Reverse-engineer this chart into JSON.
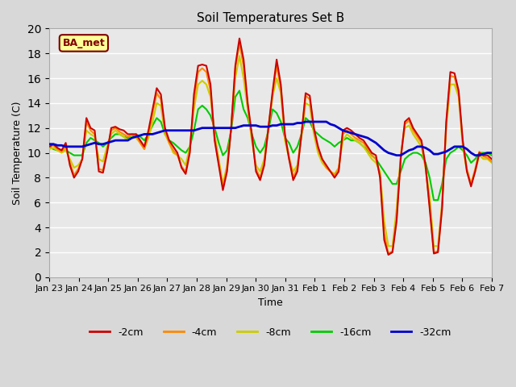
{
  "title": "Soil Temperatures Set B",
  "xlabel": "Time",
  "ylabel": "Soil Temperature (C)",
  "ylim": [
    0,
    20
  ],
  "yticks": [
    0,
    2,
    4,
    6,
    8,
    10,
    12,
    14,
    16,
    18,
    20
  ],
  "xtick_labels": [
    "Jan 23",
    "Jan 24",
    "Jan 25",
    "Jan 26",
    "Jan 27",
    "Jan 28",
    "Jan 29",
    "Jan 30",
    "Jan 31",
    "Feb 1",
    "Feb 2",
    "Feb 3",
    "Feb 4",
    "Feb 5",
    "Feb 6",
    "Feb 7"
  ],
  "annotation_text": "BA_met",
  "annotation_box_color": "#ffff99",
  "annotation_text_color": "#800000",
  "background_color": "#e8e8e8",
  "plot_background_color": "#e8e8e8",
  "line_colors": {
    "-2cm": "#cc0000",
    "-4cm": "#ff8800",
    "-8cm": "#cccc00",
    "-16cm": "#00cc00",
    "-32cm": "#0000cc"
  },
  "series": {
    "-2cm": [
      10.5,
      10.7,
      10.4,
      10.2,
      10.8,
      9.0,
      8.0,
      8.5,
      9.5,
      12.8,
      12.0,
      11.8,
      8.5,
      8.4,
      10.0,
      12.0,
      12.1,
      11.9,
      11.8,
      11.5,
      11.5,
      11.5,
      11.0,
      10.5,
      11.8,
      13.5,
      15.2,
      14.7,
      12.0,
      11.0,
      10.5,
      10.0,
      8.8,
      8.3,
      10.0,
      14.7,
      17.0,
      17.1,
      17.0,
      15.5,
      11.0,
      9.0,
      7.0,
      8.5,
      12.0,
      17.0,
      19.2,
      17.5,
      14.0,
      11.5,
      8.5,
      7.8,
      9.0,
      12.0,
      14.9,
      17.5,
      15.5,
      11.5,
      9.5,
      7.8,
      8.5,
      11.5,
      14.8,
      14.6,
      12.0,
      10.5,
      9.5,
      9.0,
      8.5,
      8.0,
      8.5,
      11.8,
      12.0,
      11.8,
      11.5,
      11.2,
      11.0,
      10.5,
      10.0,
      9.8,
      8.0,
      3.0,
      1.8,
      2.0,
      4.5,
      9.5,
      12.5,
      12.8,
      12.0,
      11.5,
      11.0,
      9.0,
      5.5,
      1.9,
      2.0,
      5.5,
      12.5,
      16.5,
      16.4,
      15.0,
      11.0,
      8.5,
      7.3,
      8.5,
      10.0,
      9.8,
      9.8,
      9.5
    ],
    "-4cm": [
      10.5,
      10.6,
      10.3,
      10.1,
      10.5,
      9.2,
      8.2,
      8.7,
      9.5,
      12.5,
      11.8,
      11.5,
      8.7,
      8.6,
      10.2,
      11.8,
      12.0,
      11.7,
      11.5,
      11.3,
      11.5,
      11.4,
      10.8,
      10.3,
      11.5,
      13.2,
      14.8,
      14.3,
      11.8,
      10.8,
      10.2,
      9.8,
      8.9,
      8.5,
      10.2,
      14.2,
      16.5,
      16.8,
      16.5,
      15.0,
      11.2,
      9.2,
      7.2,
      8.8,
      12.0,
      16.8,
      18.8,
      17.0,
      13.8,
      11.3,
      8.7,
      8.0,
      9.2,
      12.0,
      14.7,
      17.0,
      15.2,
      11.3,
      9.7,
      8.0,
      8.8,
      11.5,
      14.6,
      14.3,
      11.8,
      10.3,
      9.5,
      8.8,
      8.5,
      8.2,
      8.7,
      11.5,
      11.8,
      11.5,
      11.2,
      11.0,
      10.8,
      10.3,
      9.8,
      9.5,
      8.2,
      3.5,
      1.9,
      2.1,
      4.8,
      9.7,
      12.3,
      12.6,
      11.8,
      11.3,
      10.8,
      8.8,
      5.8,
      2.0,
      2.1,
      5.8,
      12.3,
      16.2,
      16.1,
      14.8,
      10.8,
      8.7,
      7.5,
      8.7,
      10.1,
      9.7,
      9.6,
      9.3
    ],
    "-8cm": [
      10.3,
      10.4,
      10.2,
      10.0,
      10.2,
      9.5,
      8.8,
      9.0,
      9.5,
      11.8,
      11.5,
      11.3,
      9.5,
      9.3,
      10.5,
      11.5,
      11.8,
      11.5,
      11.3,
      11.0,
      11.3,
      11.2,
      10.8,
      10.3,
      11.2,
      12.5,
      14.0,
      13.8,
      11.5,
      10.8,
      10.0,
      9.8,
      9.5,
      9.0,
      10.5,
      13.5,
      15.5,
      15.8,
      15.5,
      14.5,
      11.5,
      9.5,
      7.5,
      9.0,
      12.0,
      16.0,
      17.8,
      16.0,
      13.5,
      11.0,
      9.0,
      8.5,
      9.5,
      12.0,
      14.5,
      16.0,
      14.8,
      11.0,
      9.5,
      8.5,
      9.0,
      11.3,
      14.0,
      13.8,
      11.5,
      10.0,
      9.2,
      8.8,
      8.5,
      8.3,
      8.8,
      11.0,
      11.5,
      11.2,
      11.0,
      10.8,
      10.5,
      10.0,
      9.5,
      9.2,
      8.5,
      4.5,
      2.5,
      2.5,
      5.5,
      9.8,
      12.0,
      12.2,
      11.5,
      11.0,
      10.5,
      8.8,
      6.5,
      2.5,
      2.5,
      6.0,
      12.0,
      15.5,
      15.5,
      14.5,
      10.5,
      8.5,
      7.5,
      8.5,
      9.8,
      9.5,
      9.5,
      9.2
    ],
    "-16cm": [
      10.5,
      10.3,
      10.2,
      10.1,
      10.2,
      10.0,
      9.8,
      9.8,
      9.8,
      10.8,
      11.2,
      11.0,
      10.8,
      10.5,
      10.8,
      11.2,
      11.5,
      11.5,
      11.3,
      11.2,
      11.3,
      11.5,
      11.3,
      11.0,
      11.5,
      12.2,
      12.8,
      12.5,
      11.5,
      11.0,
      10.8,
      10.5,
      10.2,
      10.0,
      10.5,
      11.8,
      13.5,
      13.8,
      13.5,
      13.0,
      12.0,
      10.8,
      9.8,
      10.2,
      11.8,
      14.5,
      15.0,
      13.5,
      12.8,
      11.5,
      10.5,
      10.0,
      10.5,
      11.8,
      13.5,
      13.2,
      12.5,
      11.2,
      10.8,
      10.0,
      10.5,
      11.5,
      12.8,
      12.5,
      11.8,
      11.5,
      11.2,
      11.0,
      10.8,
      10.5,
      10.8,
      11.0,
      11.2,
      11.0,
      11.0,
      10.8,
      10.5,
      10.2,
      9.8,
      9.5,
      9.0,
      8.5,
      8.0,
      7.5,
      7.5,
      8.5,
      9.5,
      9.8,
      10.0,
      10.0,
      9.8,
      9.2,
      8.0,
      6.2,
      6.2,
      7.5,
      9.5,
      10.0,
      10.2,
      10.5,
      10.2,
      9.8,
      9.2,
      9.5,
      10.0,
      10.0,
      10.0,
      9.8
    ],
    "-32cm": [
      10.7,
      10.7,
      10.6,
      10.6,
      10.5,
      10.5,
      10.5,
      10.5,
      10.5,
      10.6,
      10.7,
      10.8,
      10.7,
      10.7,
      10.8,
      10.9,
      11.0,
      11.0,
      11.0,
      11.0,
      11.2,
      11.3,
      11.4,
      11.5,
      11.5,
      11.5,
      11.6,
      11.7,
      11.8,
      11.8,
      11.8,
      11.8,
      11.8,
      11.8,
      11.8,
      11.8,
      11.9,
      12.0,
      12.0,
      12.0,
      12.0,
      12.0,
      12.0,
      12.0,
      12.0,
      12.0,
      12.1,
      12.2,
      12.2,
      12.2,
      12.2,
      12.1,
      12.1,
      12.1,
      12.2,
      12.2,
      12.3,
      12.3,
      12.3,
      12.3,
      12.4,
      12.4,
      12.5,
      12.5,
      12.5,
      12.5,
      12.5,
      12.5,
      12.3,
      12.2,
      12.0,
      11.8,
      11.7,
      11.6,
      11.5,
      11.4,
      11.3,
      11.2,
      11.0,
      10.8,
      10.5,
      10.2,
      10.0,
      9.9,
      9.8,
      9.8,
      10.0,
      10.2,
      10.3,
      10.5,
      10.5,
      10.4,
      10.2,
      9.9,
      9.9,
      10.0,
      10.1,
      10.3,
      10.5,
      10.5,
      10.5,
      10.3,
      10.0,
      9.8,
      9.8,
      9.9,
      10.0,
      10.0
    ]
  }
}
